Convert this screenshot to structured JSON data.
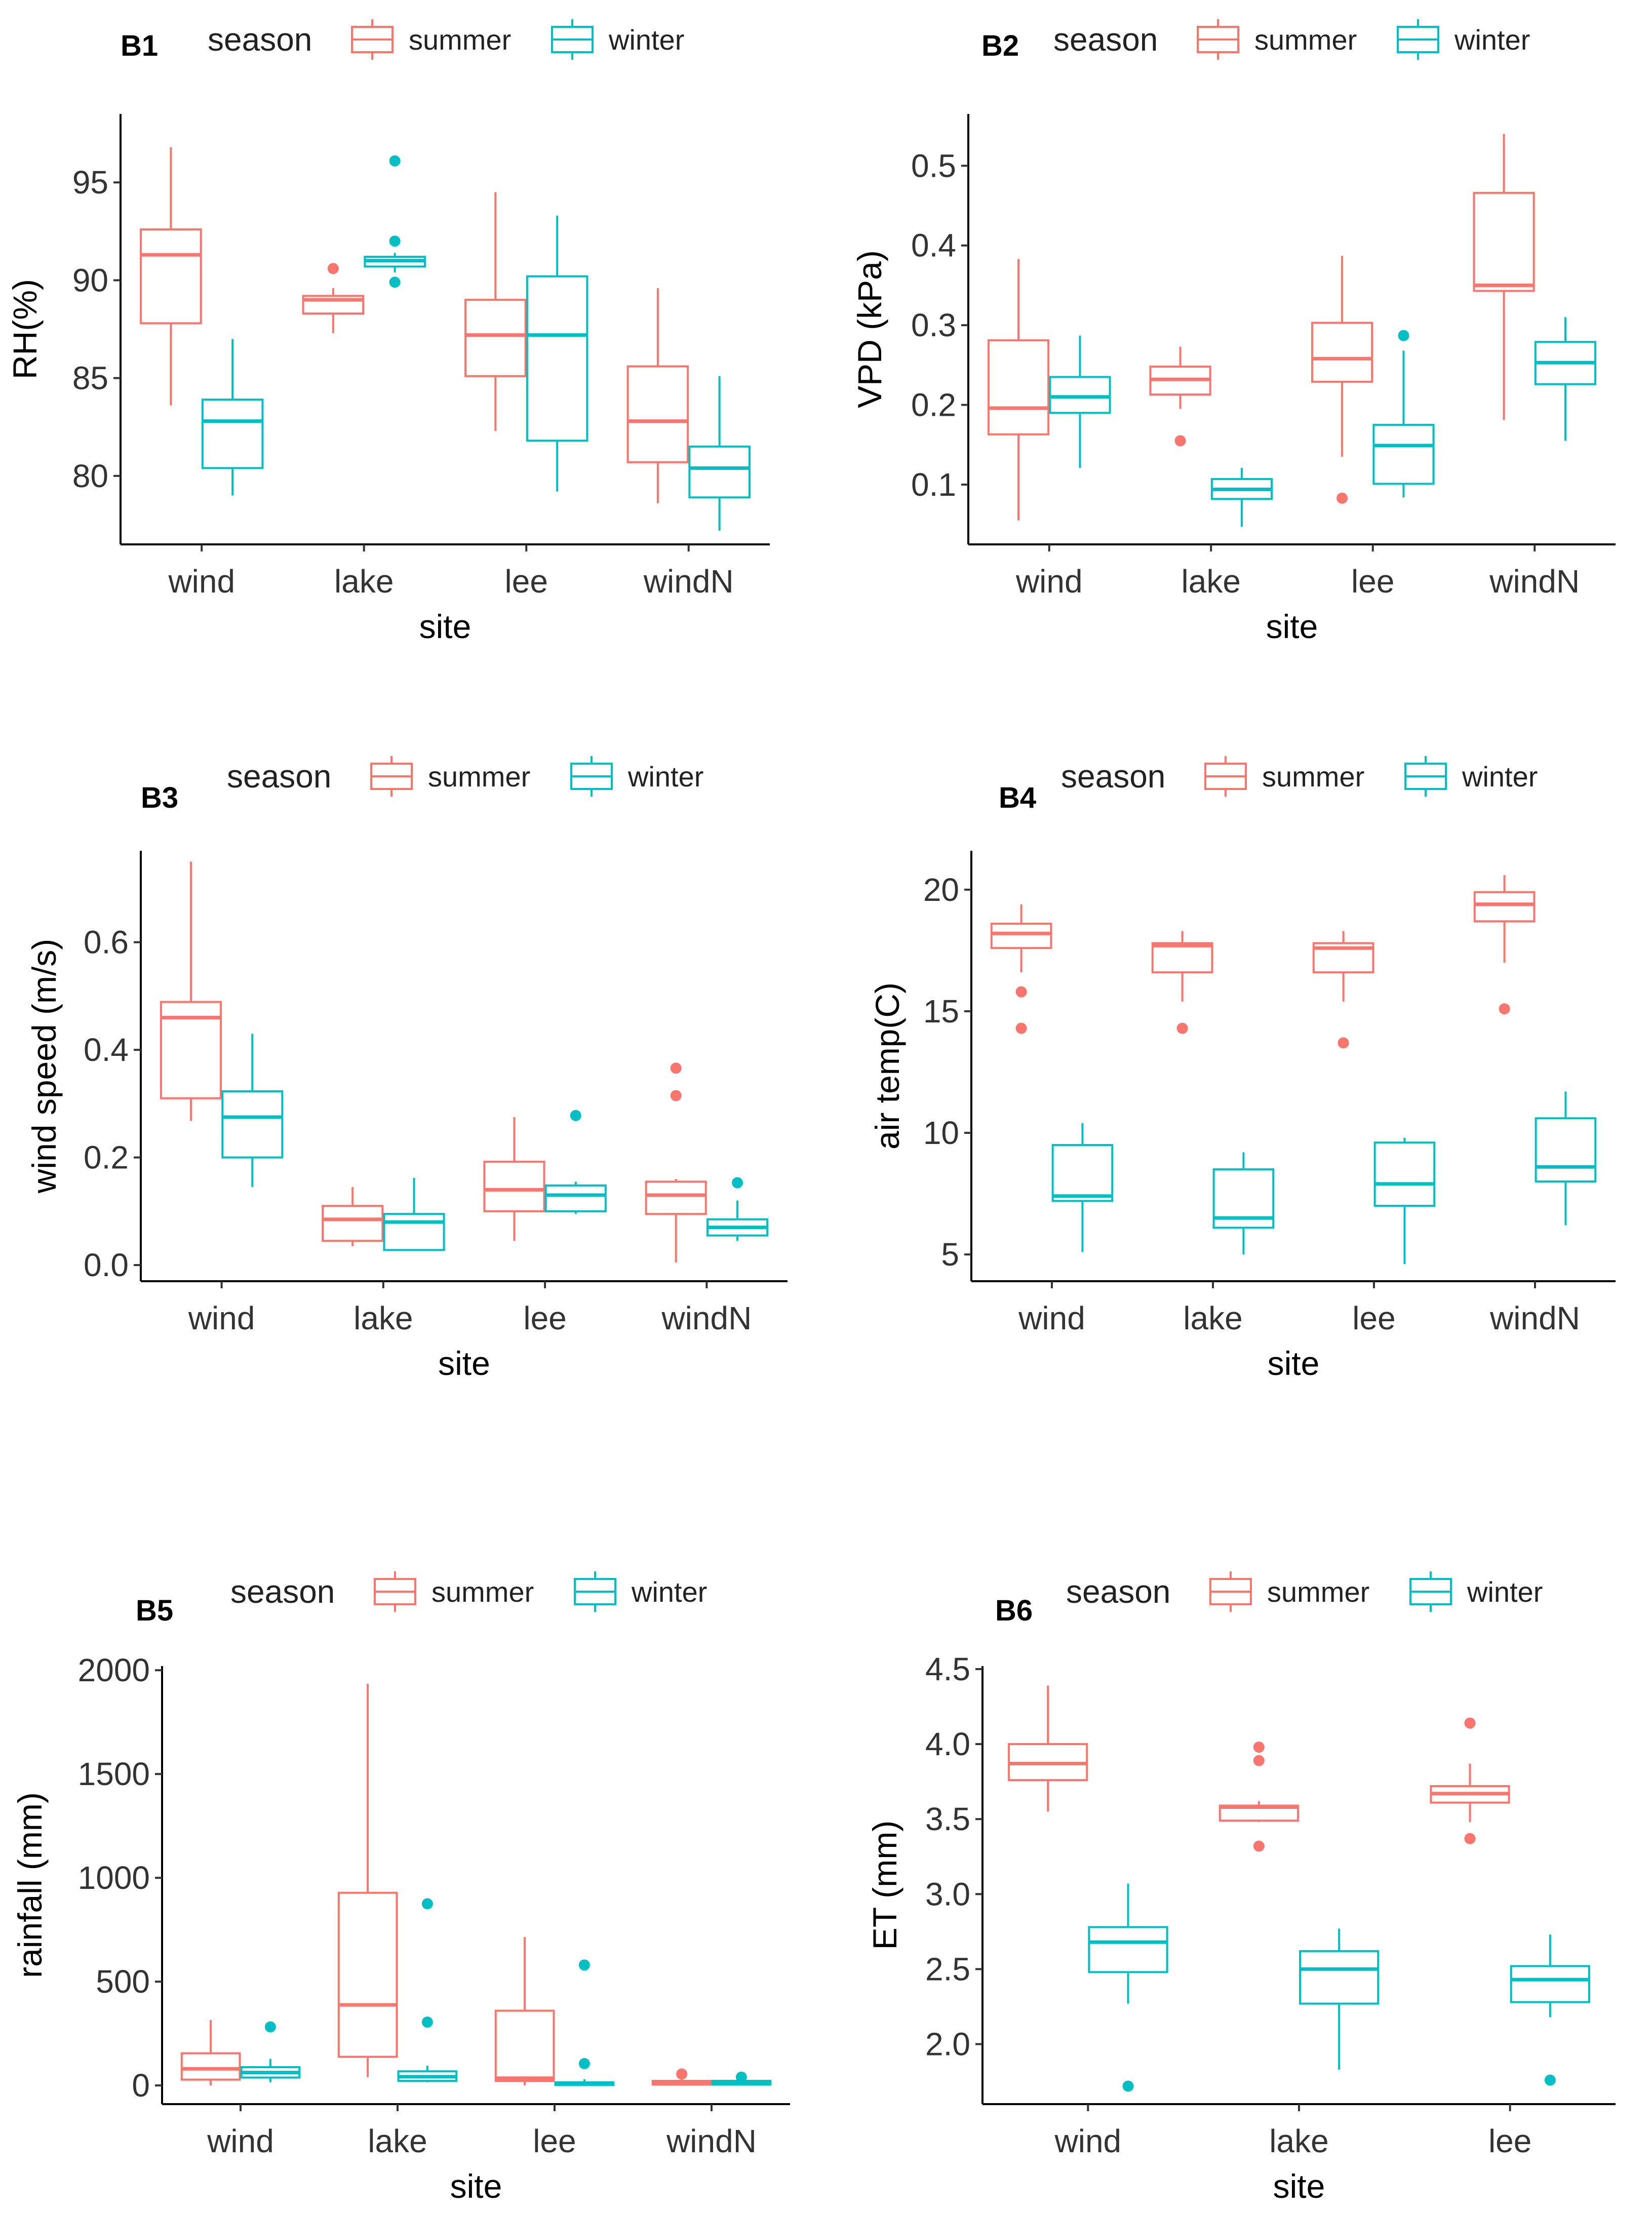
{
  "legend": {
    "title": "season",
    "items": [
      {
        "label": "summer",
        "color": "#F8766D"
      },
      {
        "label": "winter",
        "color": "#00BFC4"
      }
    ]
  },
  "chart_data": [
    {
      "panel": "B1",
      "type": "boxplot",
      "xlabel": "site",
      "ylabel": "RH(%)",
      "categories": [
        "wind",
        "lake",
        "lee",
        "windN"
      ],
      "ylim": [
        76.5,
        98.5
      ],
      "yticks": [
        80,
        85,
        90,
        95
      ],
      "series": [
        {
          "name": "summer",
          "boxes": [
            {
              "min": 83.6,
              "q1": 87.8,
              "median": 91.3,
              "q3": 92.6,
              "max": 96.8,
              "outliers": []
            },
            {
              "min": 87.3,
              "q1": 88.3,
              "median": 89.0,
              "q3": 89.2,
              "max": 89.6,
              "outliers": [
                90.6
              ]
            },
            {
              "min": 82.3,
              "q1": 85.1,
              "median": 87.2,
              "q3": 89.0,
              "max": 94.5,
              "outliers": []
            },
            {
              "min": 78.6,
              "q1": 80.7,
              "median": 82.8,
              "q3": 85.6,
              "max": 89.6,
              "outliers": []
            }
          ]
        },
        {
          "name": "winter",
          "boxes": [
            {
              "min": 79.0,
              "q1": 80.4,
              "median": 82.8,
              "q3": 83.9,
              "max": 87.0,
              "outliers": []
            },
            {
              "min": 90.4,
              "q1": 90.7,
              "median": 91.0,
              "q3": 91.2,
              "max": 91.4,
              "outliers": [
                96.1,
                92.0,
                89.9
              ]
            },
            {
              "min": 79.2,
              "q1": 81.8,
              "median": 87.2,
              "q3": 90.2,
              "max": 93.3,
              "outliers": []
            },
            {
              "min": 77.2,
              "q1": 78.9,
              "median": 80.4,
              "q3": 81.5,
              "max": 85.1,
              "outliers": []
            }
          ]
        }
      ]
    },
    {
      "panel": "B2",
      "type": "boxplot",
      "xlabel": "site",
      "ylabel": "VPD (kPa)",
      "categories": [
        "wind",
        "lake",
        "lee",
        "windN"
      ],
      "ylim": [
        0.025,
        0.565
      ],
      "yticks": [
        0.1,
        0.2,
        0.3,
        0.4,
        0.5
      ],
      "ytick_labels": [
        "0.1",
        "0.2",
        "0.3",
        "0.4",
        "0.5"
      ],
      "series": [
        {
          "name": "summer",
          "boxes": [
            {
              "min": 0.055,
              "q1": 0.163,
              "median": 0.196,
              "q3": 0.281,
              "max": 0.383,
              "outliers": []
            },
            {
              "min": 0.195,
              "q1": 0.213,
              "median": 0.232,
              "q3": 0.248,
              "max": 0.273,
              "outliers": [
                0.155
              ]
            },
            {
              "min": 0.135,
              "q1": 0.229,
              "median": 0.258,
              "q3": 0.303,
              "max": 0.387,
              "outliers": [
                0.083
              ]
            },
            {
              "min": 0.181,
              "q1": 0.343,
              "median": 0.35,
              "q3": 0.466,
              "max": 0.54,
              "outliers": []
            }
          ]
        },
        {
          "name": "winter",
          "boxes": [
            {
              "min": 0.121,
              "q1": 0.19,
              "median": 0.21,
              "q3": 0.235,
              "max": 0.287,
              "outliers": []
            },
            {
              "min": 0.047,
              "q1": 0.082,
              "median": 0.094,
              "q3": 0.107,
              "max": 0.121,
              "outliers": []
            },
            {
              "min": 0.084,
              "q1": 0.101,
              "median": 0.149,
              "q3": 0.175,
              "max": 0.268,
              "outliers": [
                0.287
              ]
            },
            {
              "min": 0.155,
              "q1": 0.226,
              "median": 0.253,
              "q3": 0.279,
              "max": 0.31,
              "outliers": []
            }
          ]
        }
      ]
    },
    {
      "panel": "B3",
      "type": "boxplot",
      "xlabel": "site",
      "ylabel": "wind speed (m/s)",
      "categories": [
        "wind",
        "lake",
        "lee",
        "windN"
      ],
      "ylim": [
        -0.03,
        0.77
      ],
      "yticks": [
        0.0,
        0.2,
        0.4,
        0.6
      ],
      "ytick_labels": [
        "0.0",
        "0.2",
        "0.4",
        "0.6"
      ],
      "series": [
        {
          "name": "summer",
          "boxes": [
            {
              "min": 0.268,
              "q1": 0.31,
              "median": 0.46,
              "q3": 0.489,
              "max": 0.75,
              "outliers": []
            },
            {
              "min": 0.035,
              "q1": 0.045,
              "median": 0.085,
              "q3": 0.11,
              "max": 0.145,
              "outliers": []
            },
            {
              "min": 0.045,
              "q1": 0.1,
              "median": 0.14,
              "q3": 0.192,
              "max": 0.275,
              "outliers": []
            },
            {
              "min": 0.005,
              "q1": 0.095,
              "median": 0.13,
              "q3": 0.155,
              "max": 0.16,
              "outliers": [
                0.366,
                0.315
              ]
            }
          ]
        },
        {
          "name": "winter",
          "boxes": [
            {
              "min": 0.145,
              "q1": 0.2,
              "median": 0.275,
              "q3": 0.323,
              "max": 0.43,
              "outliers": []
            },
            {
              "min": 0.028,
              "q1": 0.028,
              "median": 0.08,
              "q3": 0.095,
              "max": 0.162,
              "outliers": []
            },
            {
              "min": 0.095,
              "q1": 0.1,
              "median": 0.13,
              "q3": 0.148,
              "max": 0.155,
              "outliers": [
                0.278
              ]
            },
            {
              "min": 0.045,
              "q1": 0.055,
              "median": 0.07,
              "q3": 0.085,
              "max": 0.12,
              "outliers": [
                0.153
              ]
            }
          ]
        }
      ]
    },
    {
      "panel": "B4",
      "type": "boxplot",
      "xlabel": "site",
      "ylabel": "air temp(C)",
      "categories": [
        "wind",
        "lake",
        "lee",
        "windN"
      ],
      "ylim": [
        3.9,
        21.6
      ],
      "yticks": [
        5,
        10,
        15,
        20
      ],
      "series": [
        {
          "name": "summer",
          "boxes": [
            {
              "min": 16.6,
              "q1": 17.6,
              "median": 18.2,
              "q3": 18.6,
              "max": 19.4,
              "outliers": [
                15.8,
                14.3
              ]
            },
            {
              "min": 15.4,
              "q1": 16.6,
              "median": 17.7,
              "q3": 17.8,
              "max": 18.3,
              "outliers": [
                14.3
              ]
            },
            {
              "min": 15.4,
              "q1": 16.6,
              "median": 17.6,
              "q3": 17.8,
              "max": 18.3,
              "outliers": [
                13.7
              ]
            },
            {
              "min": 17.0,
              "q1": 18.7,
              "median": 19.4,
              "q3": 19.9,
              "max": 20.6,
              "outliers": [
                15.1
              ]
            }
          ]
        },
        {
          "name": "winter",
          "boxes": [
            {
              "min": 5.1,
              "q1": 7.2,
              "median": 7.4,
              "q3": 9.5,
              "max": 10.4,
              "outliers": []
            },
            {
              "min": 5.0,
              "q1": 6.1,
              "median": 6.5,
              "q3": 8.5,
              "max": 9.2,
              "outliers": []
            },
            {
              "min": 4.6,
              "q1": 7.0,
              "median": 7.9,
              "q3": 9.6,
              "max": 9.8,
              "outliers": []
            },
            {
              "min": 6.2,
              "q1": 8.0,
              "median": 8.6,
              "q3": 10.6,
              "max": 11.7,
              "outliers": []
            }
          ]
        }
      ]
    },
    {
      "panel": "B5",
      "type": "boxplot",
      "xlabel": "site",
      "ylabel": "rainfall (mm)",
      "categories": [
        "wind",
        "lake",
        "lee",
        "windN"
      ],
      "ylim": [
        -90,
        2020
      ],
      "yticks": [
        0,
        500,
        1000,
        1500,
        2000
      ],
      "series": [
        {
          "name": "summer",
          "boxes": [
            {
              "min": 0,
              "q1": 28,
              "median": 80,
              "q3": 155,
              "max": 315,
              "outliers": []
            },
            {
              "min": 40,
              "q1": 138,
              "median": 388,
              "q3": 928,
              "max": 1935,
              "outliers": []
            },
            {
              "min": 0,
              "q1": 22,
              "median": 35,
              "q3": 360,
              "max": 715,
              "outliers": []
            },
            {
              "min": 0,
              "q1": 4,
              "median": 12,
              "q3": 22,
              "max": 35,
              "outliers": [
                55
              ]
            }
          ]
        },
        {
          "name": "winter",
          "boxes": [
            {
              "min": 15,
              "q1": 38,
              "median": 62,
              "q3": 88,
              "max": 128,
              "outliers": [
                282
              ]
            },
            {
              "min": 15,
              "q1": 22,
              "median": 42,
              "q3": 68,
              "max": 95,
              "outliers": [
                875,
                305
              ]
            },
            {
              "min": 0,
              "q1": 2,
              "median": 8,
              "q3": 15,
              "max": 30,
              "outliers": [
                580,
                105
              ]
            },
            {
              "min": 0,
              "q1": 4,
              "median": 12,
              "q3": 22,
              "max": 30,
              "outliers": [
                40
              ]
            }
          ]
        }
      ]
    },
    {
      "panel": "B6",
      "type": "boxplot",
      "xlabel": "site",
      "ylabel": "ET (mm)",
      "categories": [
        "wind",
        "lake",
        "lee"
      ],
      "ylim": [
        1.6,
        4.52
      ],
      "yticks": [
        2.0,
        2.5,
        3.0,
        3.5,
        4.0,
        4.5
      ],
      "ytick_labels": [
        "2.0",
        "2.5",
        "3.0",
        "3.5",
        "4.0",
        "4.5"
      ],
      "series": [
        {
          "name": "summer",
          "boxes": [
            {
              "min": 3.55,
              "q1": 3.76,
              "median": 3.87,
              "q3": 4.0,
              "max": 4.39,
              "outliers": []
            },
            {
              "min": 3.48,
              "q1": 3.49,
              "median": 3.58,
              "q3": 3.59,
              "max": 3.62,
              "outliers": [
                3.98,
                3.89,
                3.32
              ]
            },
            {
              "min": 3.48,
              "q1": 3.61,
              "median": 3.67,
              "q3": 3.72,
              "max": 3.87,
              "outliers": [
                4.14,
                3.37
              ]
            }
          ]
        },
        {
          "name": "winter",
          "boxes": [
            {
              "min": 2.27,
              "q1": 2.48,
              "median": 2.68,
              "q3": 2.78,
              "max": 3.07,
              "outliers": [
                1.72
              ]
            },
            {
              "min": 1.83,
              "q1": 2.27,
              "median": 2.5,
              "q3": 2.62,
              "max": 2.77,
              "outliers": []
            },
            {
              "min": 2.18,
              "q1": 2.28,
              "median": 2.43,
              "q3": 2.52,
              "max": 2.73,
              "outliers": [
                1.76
              ]
            }
          ]
        }
      ]
    }
  ]
}
